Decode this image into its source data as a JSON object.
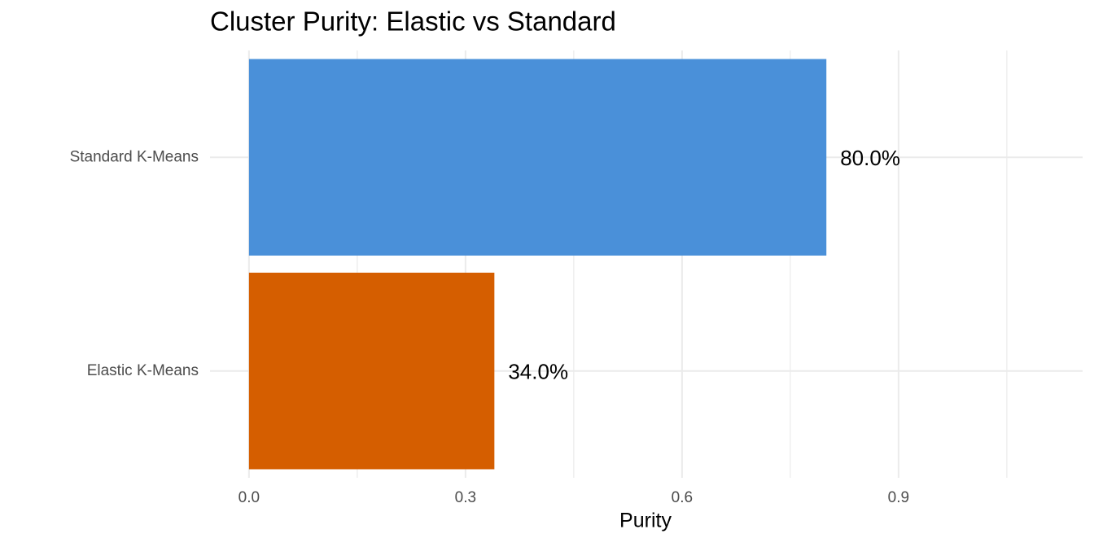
{
  "chart_data": {
    "type": "hbar",
    "title": "Cluster Purity: Elastic vs Standard",
    "x_label": "Purity",
    "categories": [
      "Elastic K-Means",
      "Standard K-Means"
    ],
    "values": [
      0.34,
      0.8
    ],
    "value_labels": [
      "34.0%",
      "80.0%"
    ],
    "colors": [
      "#d55e00",
      "#4a90d9"
    ],
    "xlim": [
      -0.054,
      1.155
    ],
    "xticks": [
      {
        "value": 0,
        "label": "0.0"
      },
      0.3,
      0.6,
      0.9
    ],
    "xminor": [
      0.15,
      0.45,
      0.75,
      1.05
    ],
    "grid": true
  }
}
